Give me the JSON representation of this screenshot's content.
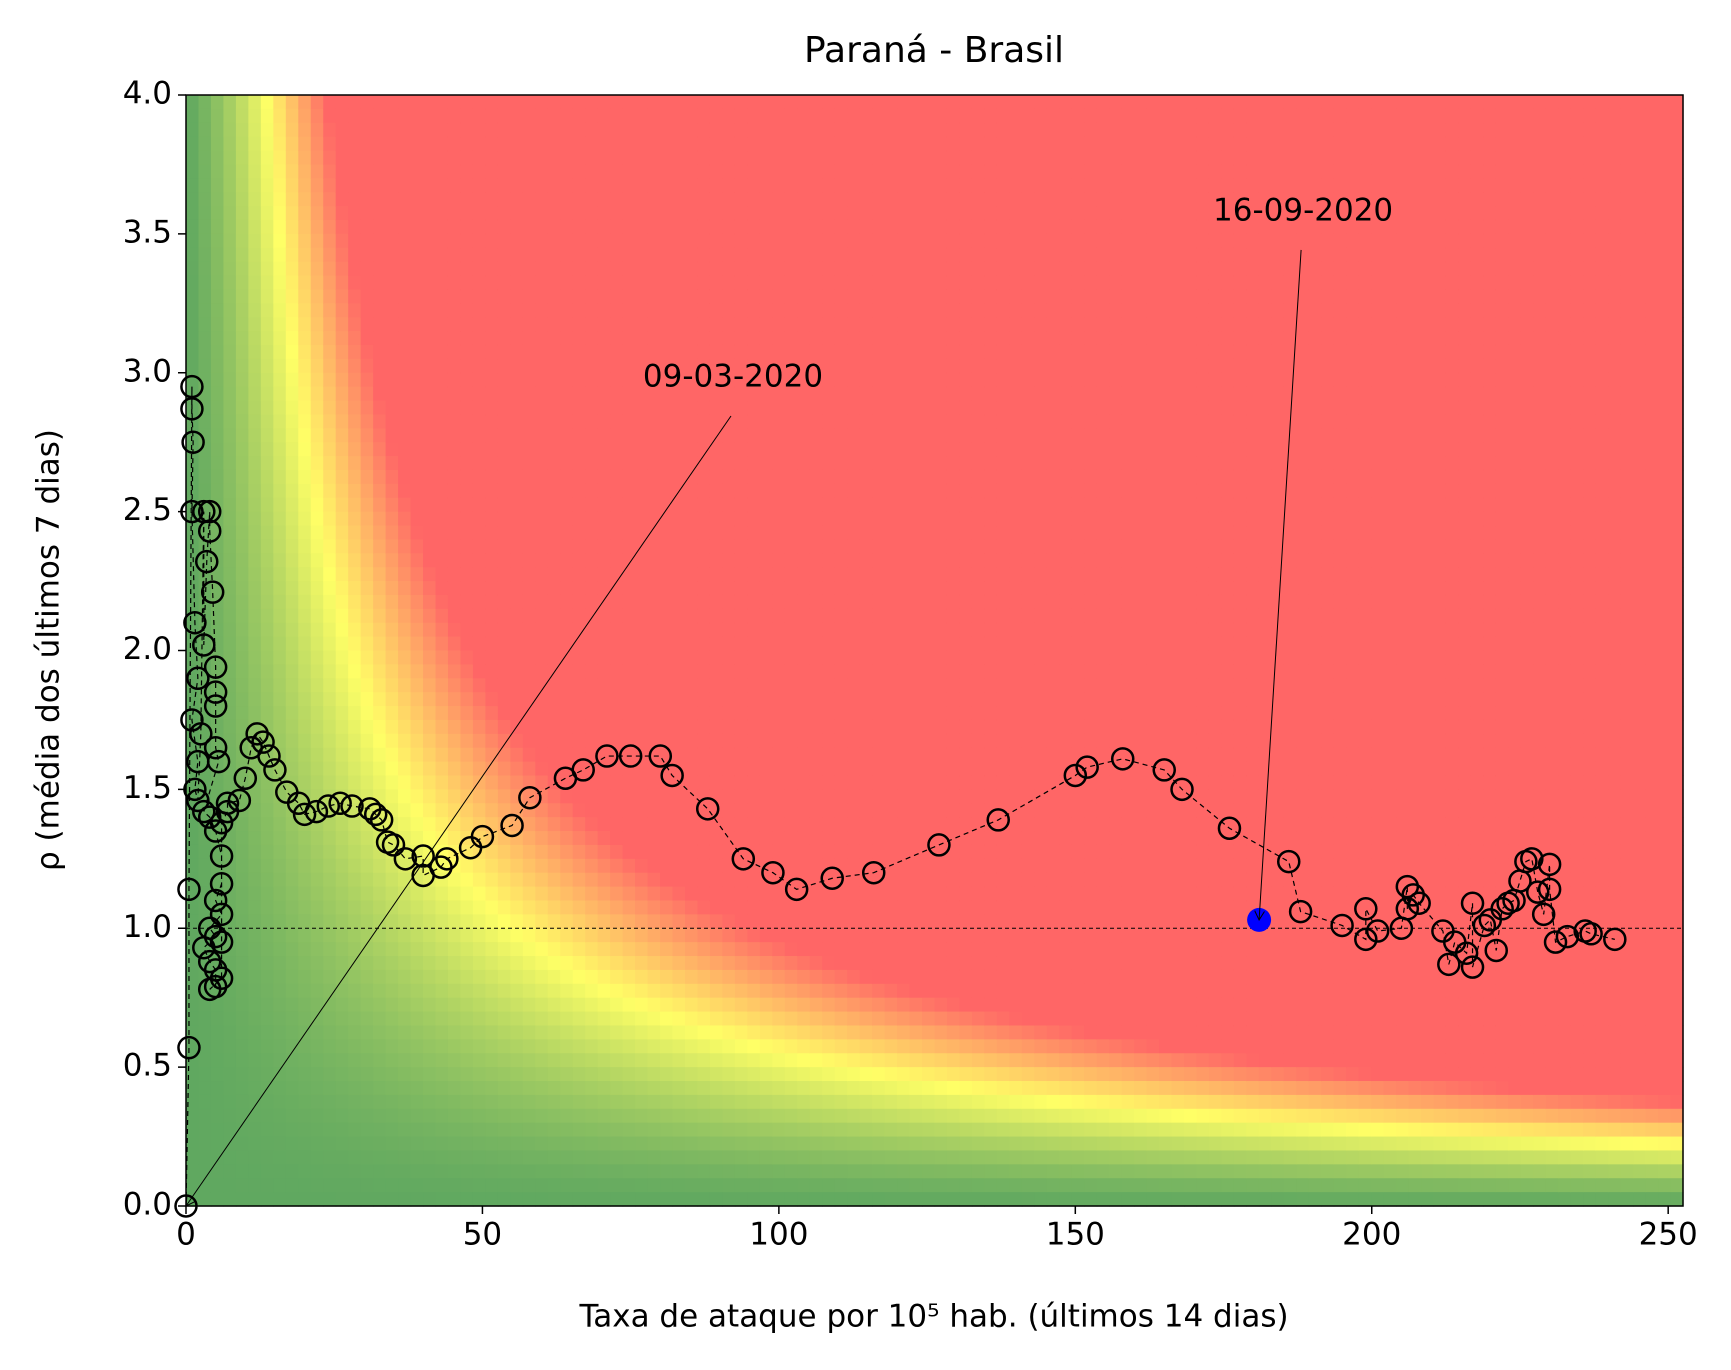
{
  "chart_data": {
    "type": "scatter",
    "title": "Paraná - Brasil",
    "x_label": "Taxa de ataque por 10⁵ hab. (últimos 14 dias)",
    "y_label": "ρ (média dos últimos 7 dias)",
    "xlim": [
      0,
      252.5
    ],
    "ylim": [
      0,
      4
    ],
    "xticks": [
      0,
      50,
      100,
      150,
      200,
      250
    ],
    "yticks": [
      {
        "value": 0,
        "label": "0.0"
      },
      {
        "value": 0.5,
        "label": "0.5"
      },
      {
        "value": 1,
        "label": "1.0"
      },
      {
        "value": 1.5,
        "label": "1.5"
      },
      {
        "value": 2,
        "label": "2.0"
      },
      {
        "value": 2.5,
        "label": "2.5"
      },
      {
        "value": 3,
        "label": "3.0"
      },
      {
        "value": 3.5,
        "label": "3.5"
      },
      {
        "value": 4,
        "label": "4.0"
      }
    ],
    "reference_line": 1,
    "series": [
      {
        "color": "#000000",
        "marker": "open",
        "x": [
          0,
          0.5,
          0.5,
          1,
          1,
          1.2,
          1,
          1.5,
          2,
          1,
          2,
          1.5,
          2,
          2.5,
          3,
          3,
          3.5,
          4,
          4,
          4.5,
          5,
          5,
          5,
          5,
          5.5,
          3,
          4,
          5,
          6,
          6,
          5,
          6,
          4,
          5,
          3,
          4,
          5,
          5,
          4,
          6,
          6,
          6,
          7,
          7,
          9,
          10,
          11,
          12,
          13,
          14,
          15,
          17,
          19,
          20,
          22,
          24,
          26,
          28,
          31,
          32,
          33,
          34,
          35,
          37,
          40,
          40,
          43,
          44,
          48,
          50,
          55,
          58,
          64,
          67,
          71,
          75,
          80,
          82,
          88,
          94,
          99,
          103,
          109,
          116,
          127,
          137,
          150,
          152,
          158,
          165,
          168,
          176,
          186,
          188,
          195,
          199,
          199,
          201,
          205,
          206,
          206,
          207,
          208,
          212,
          213,
          214,
          216,
          217,
          217,
          219,
          220,
          221,
          222,
          223,
          224,
          225,
          226,
          227,
          228,
          229,
          230,
          230,
          231,
          233,
          236,
          237,
          241
        ],
        "values": [
          0,
          0.57,
          1.14,
          2.95,
          2.87,
          2.75,
          2.5,
          2.1,
          1.9,
          1.75,
          1.6,
          1.5,
          1.46,
          1.7,
          2.5,
          2.02,
          2.32,
          2.5,
          2.43,
          2.21,
          1.94,
          1.85,
          1.8,
          1.65,
          1.6,
          1.42,
          1.4,
          1.35,
          1.26,
          1.16,
          1.1,
          1.05,
          1.0,
          0.97,
          0.93,
          0.88,
          0.85,
          0.79,
          0.78,
          0.82,
          0.95,
          1.38,
          1.42,
          1.45,
          1.46,
          1.54,
          1.65,
          1.7,
          1.67,
          1.62,
          1.57,
          1.49,
          1.45,
          1.41,
          1.42,
          1.44,
          1.45,
          1.44,
          1.43,
          1.41,
          1.39,
          1.31,
          1.3,
          1.25,
          1.26,
          1.19,
          1.22,
          1.25,
          1.29,
          1.33,
          1.37,
          1.47,
          1.54,
          1.57,
          1.62,
          1.62,
          1.62,
          1.55,
          1.43,
          1.25,
          1.2,
          1.14,
          1.18,
          1.2,
          1.3,
          1.39,
          1.55,
          1.58,
          1.61,
          1.57,
          1.5,
          1.36,
          1.24,
          1.06,
          1.01,
          0.96,
          1.07,
          0.99,
          1.0,
          1.15,
          1.07,
          1.12,
          1.09,
          0.99,
          0.87,
          0.95,
          0.91,
          1.09,
          0.86,
          1.01,
          1.03,
          0.92,
          1.07,
          1.09,
          1.1,
          1.17,
          1.24,
          1.25,
          1.13,
          1.05,
          1.23,
          1.14,
          0.95,
          0.97,
          0.99,
          0.98,
          0.96
        ]
      },
      {
        "color": "#0000ff",
        "marker": "filled",
        "x": [
          181
        ],
        "values": [
          1.03
        ]
      }
    ],
    "annotations": [
      {
        "text": "09-03-2020",
        "x": 0,
        "y": 0
      },
      {
        "text": "16-09-2020",
        "x": 181,
        "y": 1.03
      }
    ]
  }
}
